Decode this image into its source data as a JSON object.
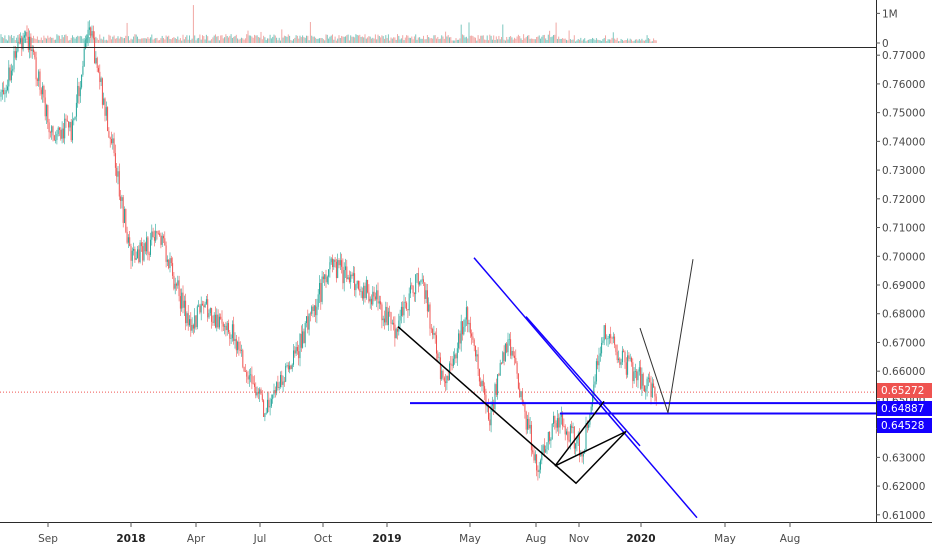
{
  "chart_data": [
    {
      "type": "bar",
      "panel": "volume",
      "yticks": [
        {
          "label": "1M",
          "value": 1000000
        },
        {
          "label": "0",
          "value": 0
        }
      ],
      "ylim": [
        0,
        1350000
      ],
      "colors": {
        "up": "#7cc7bf",
        "down": "#f1a7a4"
      }
    },
    {
      "type": "candlestick",
      "panel": "price",
      "ylim": [
        0.6075,
        0.7725
      ],
      "yticks": [
        "0.77000",
        "0.76000",
        "0.75000",
        "0.74000",
        "0.73000",
        "0.72000",
        "0.71000",
        "0.70000",
        "0.69000",
        "0.68000",
        "0.67000",
        "0.66000",
        "0.65000",
        "0.64000",
        "0.63000",
        "0.62000",
        "0.61000"
      ],
      "xticks": [
        {
          "label": "Sep",
          "bold": false
        },
        {
          "label": "2018",
          "bold": true
        },
        {
          "label": "Apr",
          "bold": false
        },
        {
          "label": "Jul",
          "bold": false
        },
        {
          "label": "Oct",
          "bold": false
        },
        {
          "label": "2019",
          "bold": true
        },
        {
          "label": "May",
          "bold": false
        },
        {
          "label": "Aug",
          "bold": false
        },
        {
          "label": "Nov",
          "bold": false
        },
        {
          "label": "2020",
          "bold": true
        },
        {
          "label": "May",
          "bold": false
        },
        {
          "label": "Aug",
          "bold": false
        }
      ],
      "key_prices": [
        0.7555,
        0.7792,
        0.744,
        0.744,
        0.7795,
        0.739,
        0.6985,
        0.708,
        0.6765,
        0.682,
        0.672,
        0.645,
        0.669,
        0.6975,
        0.686,
        0.674,
        0.695,
        0.654,
        0.68,
        0.644,
        0.671,
        0.6265,
        0.644,
        0.632,
        0.675,
        0.662,
        0.6527
      ],
      "current_price": {
        "label": "0.65272",
        "value": 0.65272,
        "color": "#ef5350"
      },
      "horizontal_levels": [
        {
          "label": "0.64887",
          "value": 0.64887,
          "color": "#1400ff"
        },
        {
          "label": "0.64528",
          "value": 0.64528,
          "color": "#1400ff"
        }
      ],
      "annotations": {
        "blue_trendline": {
          "color": "#1400ff",
          "from": 0.6995,
          "to": 0.609
        },
        "black_channel": {
          "color": "#000000",
          "prices": [
            0.6755,
            0.621,
            0.639,
            0.627,
            0.6495
          ]
        },
        "projection_path": {
          "color": "#333333",
          "prices": [
            0.675,
            0.6455,
            0.699
          ]
        }
      },
      "colors": {
        "up": "#26a69a",
        "down": "#ef5350"
      },
      "grid": false
    }
  ]
}
